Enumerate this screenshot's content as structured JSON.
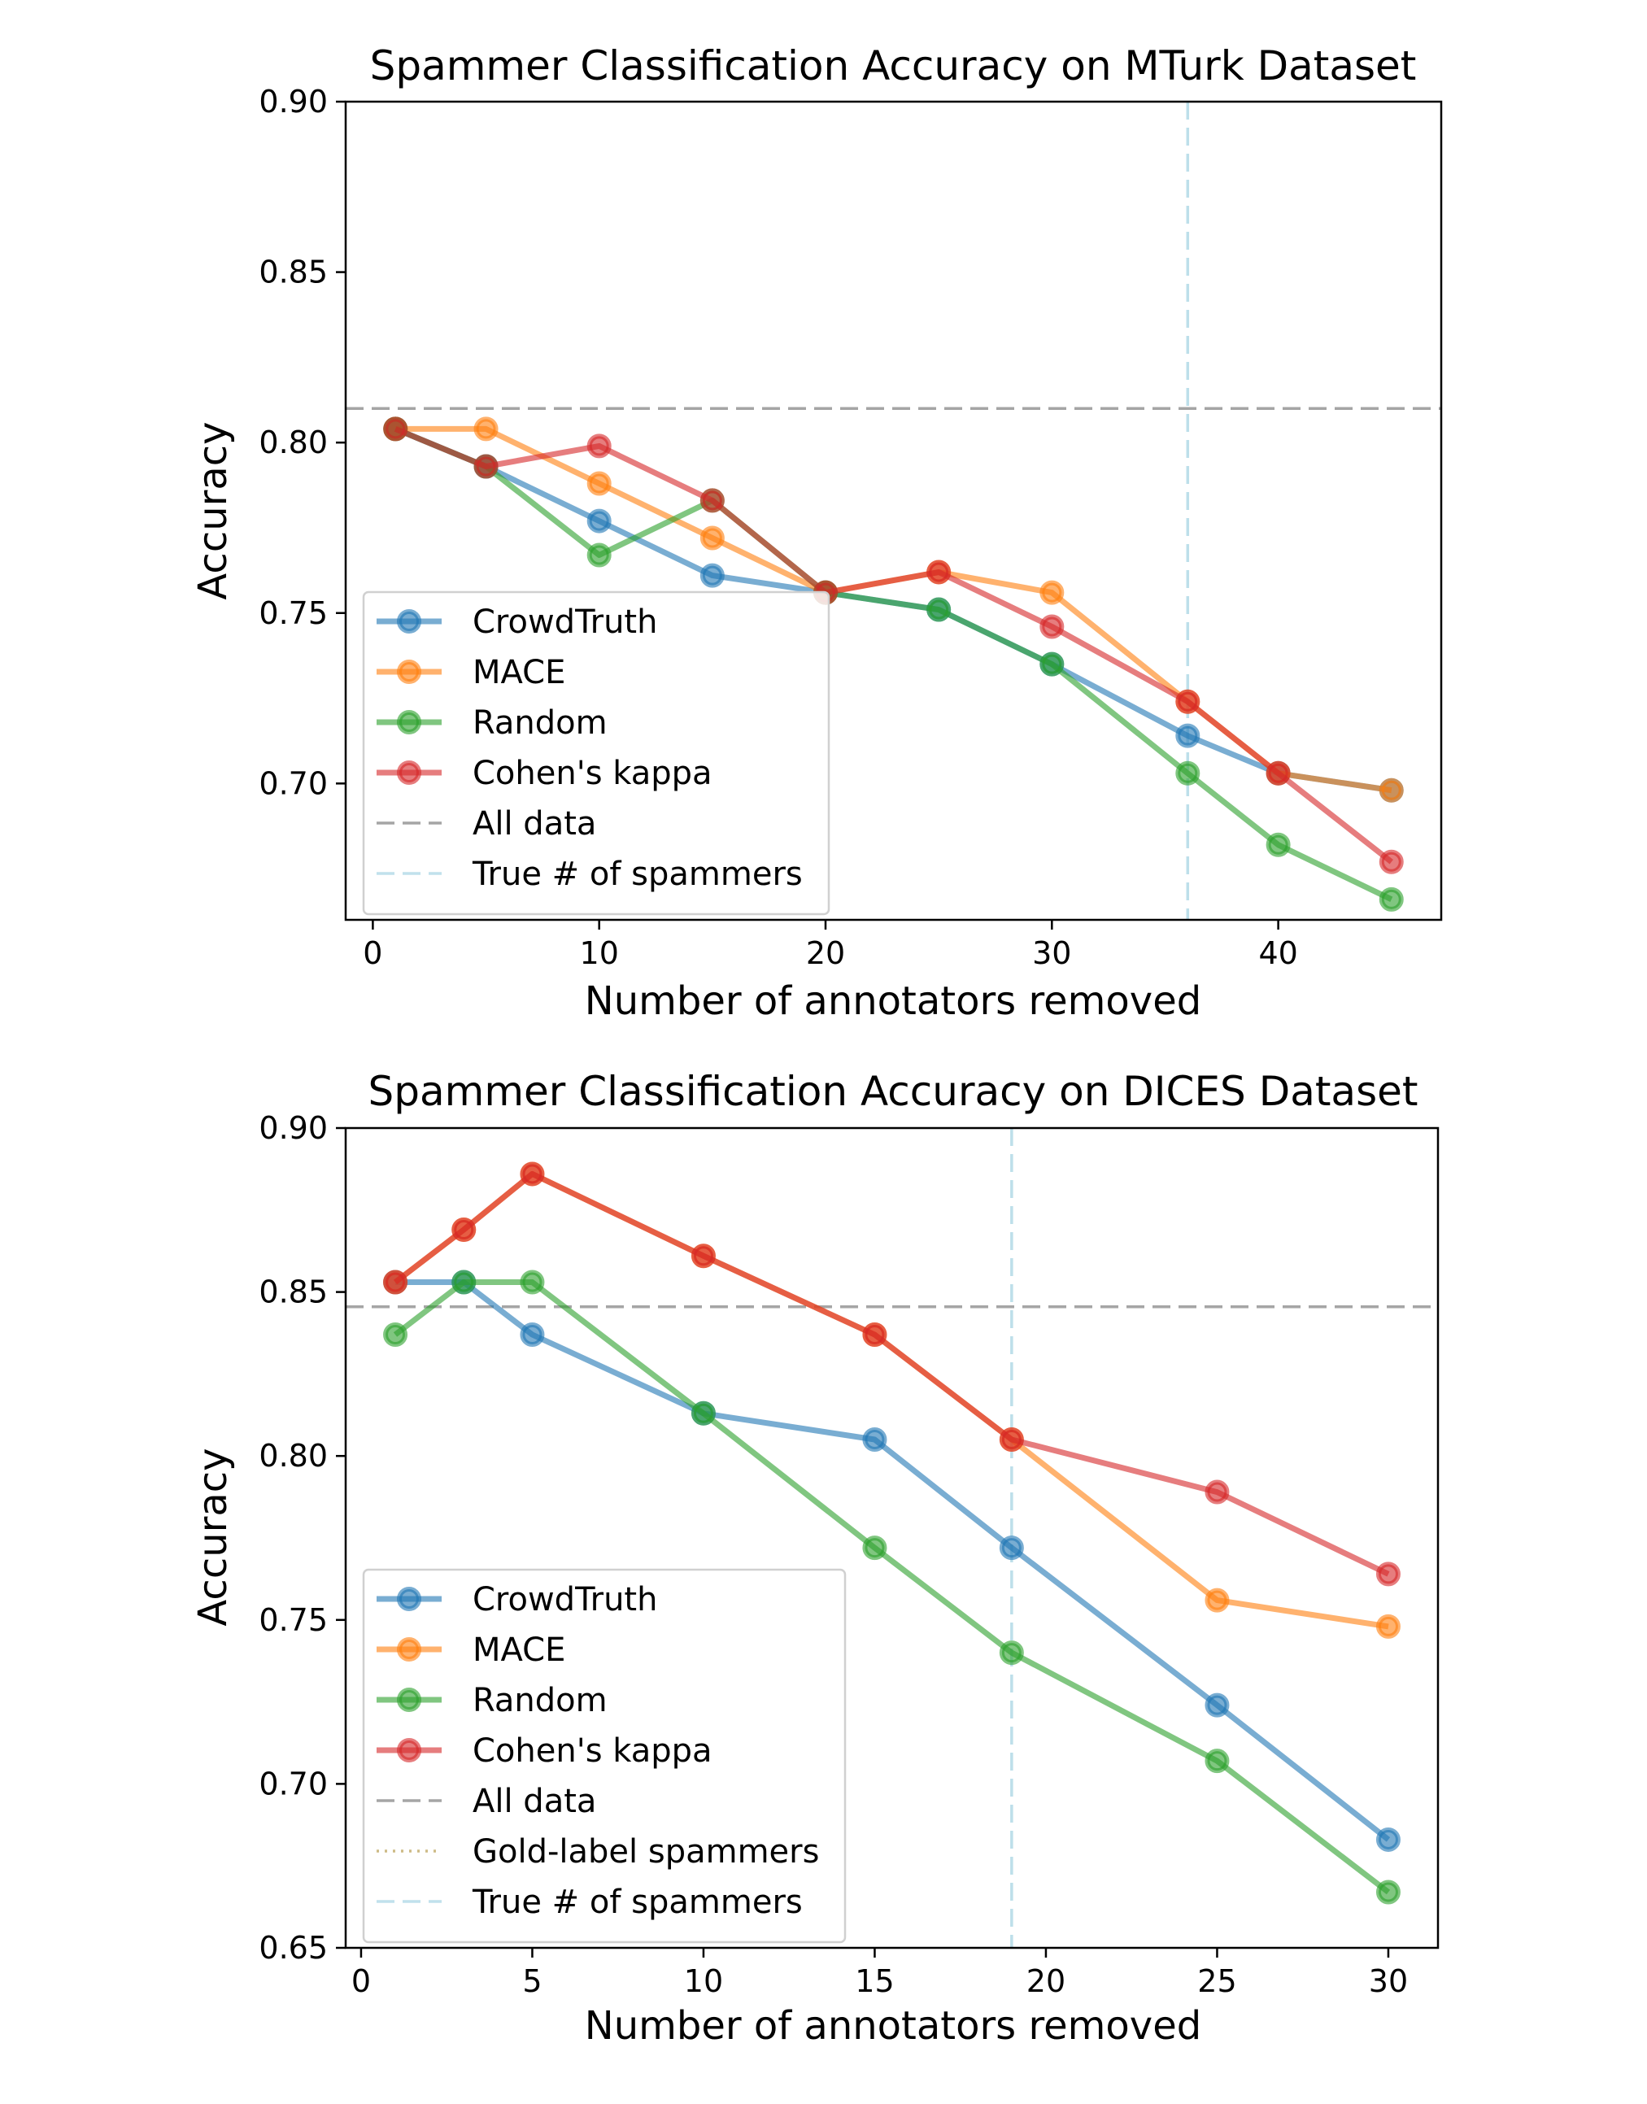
{
  "chart_data": [
    {
      "type": "line",
      "title": "Spammer Classification Accuracy on MTurk Dataset",
      "xlabel": "Number of annotators removed",
      "ylabel": "Accuracy",
      "xlim": [
        -1.2,
        47.2
      ],
      "ylim": [
        0.66,
        0.9
      ],
      "xticks": [
        "0",
        "10",
        "20",
        "30",
        "40"
      ],
      "xtick_values": [
        0,
        10,
        20,
        30,
        40
      ],
      "yticks": [
        "0.70",
        "0.75",
        "0.80",
        "0.85",
        "0.90"
      ],
      "ytick_values": [
        0.7,
        0.75,
        0.8,
        0.85,
        0.9
      ],
      "x": [
        1,
        5,
        10,
        15,
        20,
        25,
        30,
        36,
        40,
        45
      ],
      "series": [
        {
          "name": "CrowdTruth",
          "color": "#1f77b4",
          "values": [
            0.804,
            0.793,
            0.777,
            0.761,
            0.756,
            0.751,
            0.735,
            0.714,
            0.703,
            0.698
          ]
        },
        {
          "name": "MACE",
          "color": "#ff7f0e",
          "values": [
            0.804,
            0.804,
            0.788,
            0.772,
            0.756,
            0.762,
            0.756,
            0.724,
            0.703,
            0.698
          ]
        },
        {
          "name": "Random",
          "color": "#2ca02c",
          "values": [
            0.804,
            0.793,
            0.767,
            0.783,
            0.756,
            0.751,
            0.735,
            0.703,
            0.682,
            0.666
          ]
        },
        {
          "name": "Cohen's kappa",
          "color": "#d62728",
          "values": [
            0.804,
            0.793,
            0.799,
            0.783,
            0.756,
            0.762,
            0.746,
            0.724,
            0.703,
            0.677
          ]
        }
      ],
      "reference_lines": {
        "all_data": {
          "label": "All data",
          "axis": "y",
          "value": 0.81,
          "color": "#888888"
        },
        "true_spammers": {
          "label": "True # of spammers",
          "axis": "x",
          "value": 36,
          "color": "#add8e6"
        }
      },
      "legend_entries": [
        "CrowdTruth",
        "MACE",
        "Random",
        "Cohen's kappa",
        "All data",
        "True # of spammers"
      ],
      "legend": "lower-left"
    },
    {
      "type": "line",
      "title": "Spammer Classification Accuracy on DICES Dataset",
      "xlabel": "Number of annotators removed",
      "ylabel": "Accuracy",
      "xlim": [
        -0.45,
        31.45
      ],
      "ylim": [
        0.65,
        0.9
      ],
      "xticks": [
        "0",
        "5",
        "10",
        "15",
        "20",
        "25",
        "30"
      ],
      "xtick_values": [
        0,
        5,
        10,
        15,
        20,
        25,
        30
      ],
      "yticks": [
        "0.65",
        "0.70",
        "0.75",
        "0.80",
        "0.85",
        "0.90"
      ],
      "ytick_values": [
        0.65,
        0.7,
        0.75,
        0.8,
        0.85,
        0.9
      ],
      "x": [
        1,
        3,
        5,
        10,
        15,
        19,
        25,
        30
      ],
      "series": [
        {
          "name": "CrowdTruth",
          "color": "#1f77b4",
          "values": [
            0.853,
            0.853,
            0.837,
            0.813,
            0.805,
            0.772,
            0.724,
            0.683
          ]
        },
        {
          "name": "MACE",
          "color": "#ff7f0e",
          "values": [
            0.853,
            0.869,
            0.886,
            0.861,
            0.837,
            0.805,
            0.756,
            0.748
          ]
        },
        {
          "name": "Random",
          "color": "#2ca02c",
          "values": [
            0.837,
            0.853,
            0.853,
            0.813,
            0.772,
            0.74,
            0.707,
            0.667
          ]
        },
        {
          "name": "Cohen's kappa",
          "color": "#d62728",
          "values": [
            0.853,
            0.869,
            0.886,
            0.861,
            0.837,
            0.805,
            0.789,
            0.764
          ]
        }
      ],
      "reference_lines": {
        "all_data": {
          "label": "All data",
          "axis": "y",
          "value": 0.8455,
          "color": "#888888"
        },
        "gold_label": {
          "label": "Gold-label spammers",
          "color": "#c8b47a"
        },
        "true_spammers": {
          "label": "True # of spammers",
          "axis": "x",
          "value": 19,
          "color": "#add8e6"
        }
      },
      "legend_entries": [
        "CrowdTruth",
        "MACE",
        "Random",
        "Cohen's kappa",
        "All data",
        "Gold-label spammers",
        "True # of spammers"
      ],
      "legend": "lower-left"
    }
  ]
}
